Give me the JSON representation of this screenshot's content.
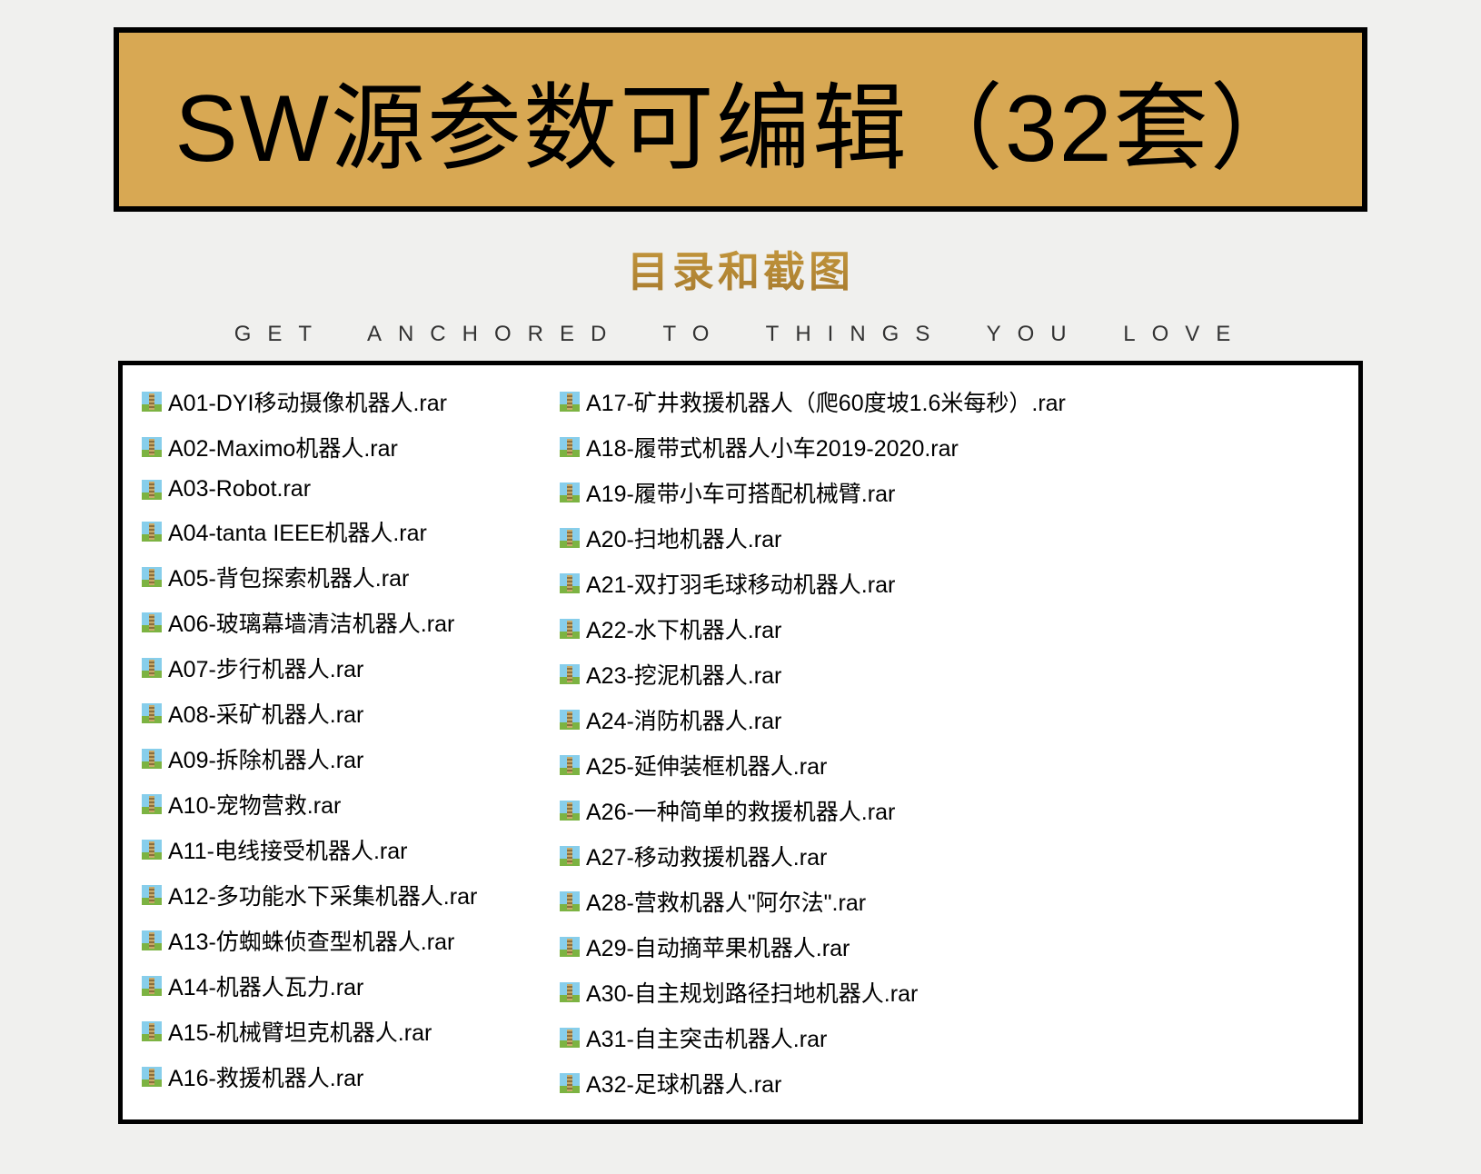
{
  "header": {
    "title": "SW源参数可编辑（32套）",
    "subtitle": "目录和截图",
    "tagline": "GET ANCHORED TO THINGS YOU LOVE"
  },
  "colors": {
    "page_bg": "#f0f0ee",
    "title_bg": "#d8a853",
    "title_border": "#000000",
    "title_text": "#000000",
    "subtitle_gradient_top": "#c79a3e",
    "subtitle_gradient_bottom": "#a67a2e",
    "tagline_text": "#333333",
    "file_box_bg": "#ffffff",
    "file_box_border": "#000000",
    "file_text": "#000000",
    "icon_sky": "#87ceeb",
    "icon_books": "#8b6f3e",
    "icon_green": "#7cb342"
  },
  "styling": {
    "title_font_size": 104,
    "subtitle_font_size": 46,
    "tagline_font_size": 24,
    "tagline_letter_spacing": 18,
    "file_font_size": 25,
    "border_width": 6,
    "file_box_border_width": 5
  },
  "files": {
    "column1": [
      "A01-DYI移动摄像机器人.rar",
      "A02-Maximo机器人.rar",
      "A03-Robot.rar",
      "A04-tanta IEEE机器人.rar",
      "A05-背包探索机器人.rar",
      "A06-玻璃幕墙清洁机器人.rar",
      "A07-步行机器人.rar",
      "A08-采矿机器人.rar",
      "A09-拆除机器人.rar",
      "A10-宠物营救.rar",
      "A11-电线接受机器人.rar",
      "A12-多功能水下采集机器人.rar",
      "A13-仿蜘蛛侦查型机器人.rar",
      "A14-机器人瓦力.rar",
      "A15-机械臂坦克机器人.rar",
      "A16-救援机器人.rar"
    ],
    "column2": [
      "A17-矿井救援机器人（爬60度坡1.6米每秒）.rar",
      "A18-履带式机器人小车2019-2020.rar",
      "A19-履带小车可搭配机械臂.rar",
      "A20-扫地机器人.rar",
      "A21-双打羽毛球移动机器人.rar",
      "A22-水下机器人.rar",
      "A23-挖泥机器人.rar",
      "A24-消防机器人.rar",
      "A25-延伸装框机器人.rar",
      "A26-一种简单的救援机器人.rar",
      "A27-移动救援机器人.rar",
      "A28-营救机器人\"阿尔法\".rar",
      "A29-自动摘苹果机器人.rar",
      "A30-自主规划路径扫地机器人.rar",
      "A31-自主突击机器人.rar",
      "A32-足球机器人.rar"
    ]
  }
}
